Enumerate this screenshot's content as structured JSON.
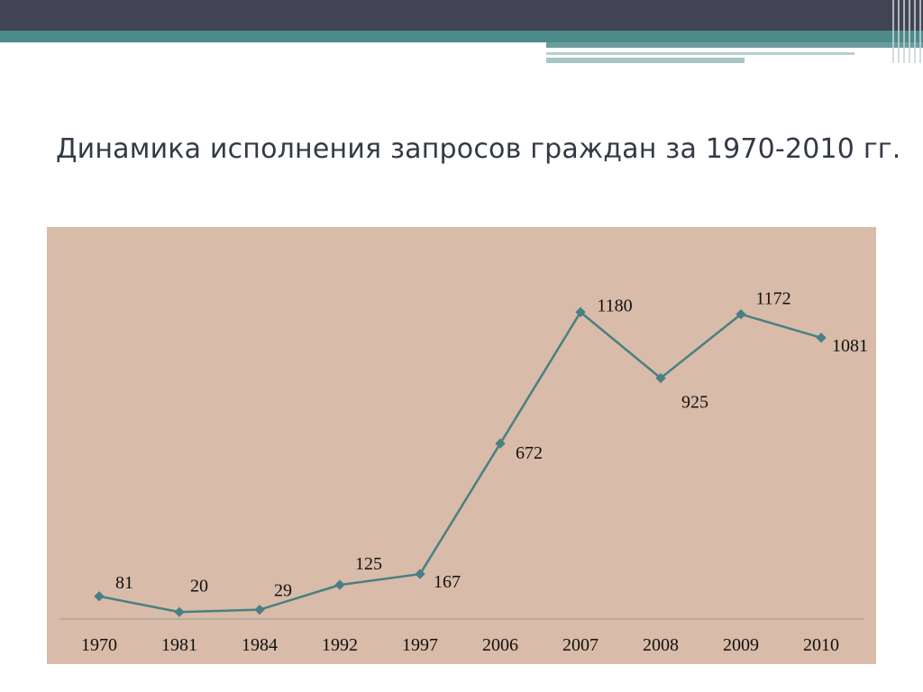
{
  "slide": {
    "title": "Динамика исполнения запросов граждан за 1970-2010 гг."
  },
  "colors": {
    "top_bar": "#434453",
    "teal_band": "#4d8a8a",
    "light_teal": "#a8c6c6",
    "chart_background": "#d8bba8",
    "series_line": "#4a7f84",
    "axis_line": "#b0a39a"
  },
  "chart_data": {
    "type": "line",
    "categories": [
      "1970",
      "1981",
      "1984",
      "1992",
      "1997",
      "2006",
      "2007",
      "2008",
      "2009",
      "2010"
    ],
    "series": [
      {
        "values": [
          81,
          20,
          29,
          125,
          167,
          672,
          1180,
          925,
          1172,
          1081
        ]
      }
    ],
    "data_labels": [
      "81",
      "20",
      "29",
      "125",
      "167",
      "672",
      "1180",
      "925",
      "1172",
      "1081"
    ],
    "ylim": [
      0,
      1300
    ],
    "grid": false,
    "legend": "none"
  }
}
